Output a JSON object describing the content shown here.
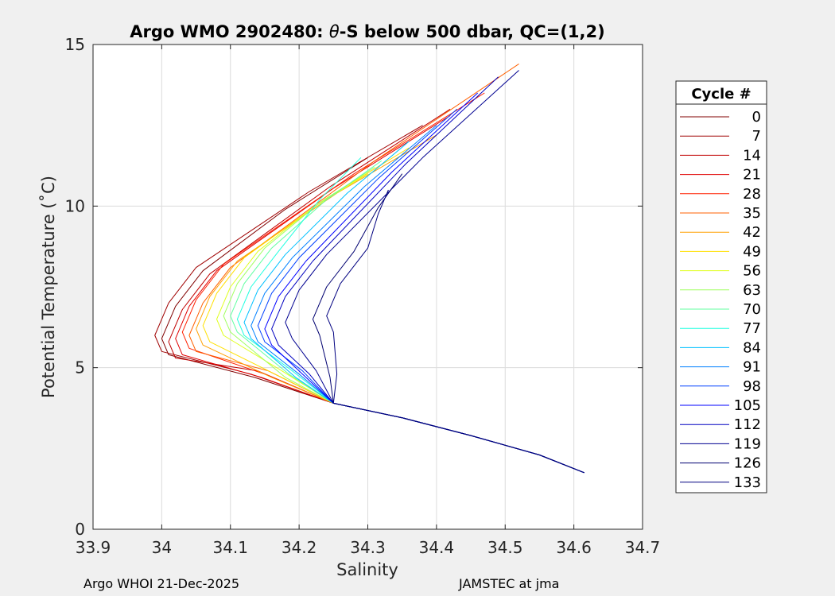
{
  "chart_data": {
    "type": "line",
    "title_parts": {
      "prefix": "Argo WMO 2902480: ",
      "theta": "θ",
      "suffix": "-S below 500 dbar,  QC=(1,2)"
    },
    "xlabel": "Salinity",
    "ylabel": "Potential Temperature (˚C)",
    "xlim": [
      33.9,
      34.7
    ],
    "ylim": [
      0,
      15
    ],
    "xticks": [
      33.9,
      34.0,
      34.1,
      34.2,
      34.3,
      34.4,
      34.5,
      34.6,
      34.7
    ],
    "xtick_labels": [
      "33.9",
      "34",
      "34.1",
      "34.2",
      "34.3",
      "34.4",
      "34.5",
      "34.6",
      "34.7"
    ],
    "yticks": [
      0,
      5,
      10,
      15
    ],
    "ytick_labels": [
      "0",
      "5",
      "10",
      "15"
    ],
    "grid": true,
    "legend": {
      "title": "Cycle #",
      "position": "right-outside",
      "entries": [
        "0",
        "7",
        "14",
        "21",
        "28",
        "35",
        "42",
        "49",
        "56",
        "63",
        "70",
        "77",
        "84",
        "91",
        "98",
        "105",
        "112",
        "119",
        "126",
        "133"
      ],
      "colors": [
        "#800000",
        "#a00000",
        "#c00000",
        "#e00000",
        "#ff2000",
        "#ff6000",
        "#ffa000",
        "#ffe000",
        "#e0ff20",
        "#a0ff60",
        "#60ffa0",
        "#20ffe0",
        "#00c0ff",
        "#0080ff",
        "#0040ff",
        "#0000ff",
        "#0000c0",
        "#000090",
        "#000070",
        "#000080"
      ]
    },
    "series_template": {
      "description": "Representative θ-S curve per cycle (min salinity near 5-6 °C)",
      "deep": [
        [
          34.615,
          1.75
        ],
        [
          34.55,
          2.3
        ],
        [
          34.45,
          2.9
        ],
        [
          34.35,
          3.45
        ],
        [
          34.25,
          3.9
        ]
      ],
      "upper_end": [
        34.5,
        14.0
      ]
    },
    "series": [
      {
        "name": "0",
        "smin": 34.0,
        "tmin": 5.9,
        "t_end": 11.5,
        "s_end": 34.3
      },
      {
        "name": "7",
        "smin": 33.99,
        "tmin": 6.0,
        "t_end": 12.5,
        "s_end": 34.38
      },
      {
        "name": "14",
        "smin": 34.01,
        "tmin": 5.8,
        "t_end": 13.0,
        "s_end": 34.42
      },
      {
        "name": "21",
        "smin": 34.02,
        "tmin": 5.9,
        "t_end": 12.8,
        "s_end": 34.42
      },
      {
        "name": "28",
        "smin": 34.03,
        "tmin": 6.1,
        "t_end": 13.5,
        "s_end": 34.47
      },
      {
        "name": "35",
        "smin": 34.04,
        "tmin": 6.0,
        "t_end": 14.4,
        "s_end": 34.52
      },
      {
        "name": "42",
        "smin": 34.05,
        "tmin": 6.2,
        "t_end": 12.2,
        "s_end": 34.4
      },
      {
        "name": "49",
        "smin": 34.06,
        "tmin": 6.3,
        "t_end": 11.8,
        "s_end": 34.36
      },
      {
        "name": "56",
        "smin": 34.08,
        "tmin": 6.5,
        "t_end": 11.0,
        "s_end": 34.3
      },
      {
        "name": "63",
        "smin": 34.09,
        "tmin": 6.6,
        "t_end": 11.2,
        "s_end": 34.31
      },
      {
        "name": "70",
        "smin": 34.1,
        "tmin": 6.6,
        "t_end": 11.4,
        "s_end": 34.32
      },
      {
        "name": "77",
        "smin": 34.11,
        "tmin": 6.5,
        "t_end": 11.5,
        "s_end": 34.29
      },
      {
        "name": "84",
        "smin": 34.12,
        "tmin": 6.4,
        "t_end": 12.0,
        "s_end": 34.36
      },
      {
        "name": "91",
        "smin": 34.13,
        "tmin": 6.3,
        "t_end": 12.5,
        "s_end": 34.4
      },
      {
        "name": "98",
        "smin": 34.14,
        "tmin": 6.3,
        "t_end": 13.0,
        "s_end": 34.43
      },
      {
        "name": "105",
        "smin": 34.15,
        "tmin": 6.2,
        "t_end": 13.5,
        "s_end": 34.46
      },
      {
        "name": "112",
        "smin": 34.16,
        "tmin": 6.2,
        "t_end": 14.0,
        "s_end": 34.49
      },
      {
        "name": "119",
        "smin": 34.18,
        "tmin": 6.4,
        "t_end": 14.2,
        "s_end": 34.52
      },
      {
        "name": "126",
        "smin": 34.22,
        "tmin": 6.5,
        "t_end": 11.0,
        "s_end": 34.35
      },
      {
        "name": "133",
        "smin": 34.24,
        "tmin": 6.6,
        "t_end": 10.5,
        "s_end": 34.33
      }
    ]
  },
  "footer": {
    "left": "Argo WHOI 21-Dec-2025",
    "right": "JAMSTEC at jma"
  }
}
